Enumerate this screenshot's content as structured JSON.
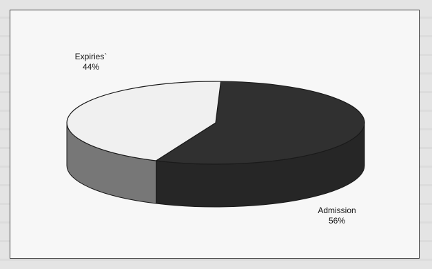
{
  "chart_data": {
    "type": "pie",
    "style": "3d",
    "slices": [
      {
        "label": "Admission",
        "value": 56,
        "value_label": "56%",
        "color": "#303030",
        "side_color": "#262626"
      },
      {
        "label": "Expiries`",
        "value": 44,
        "value_label": "44%",
        "color": "#f0f0f0",
        "side_color": "#777777"
      }
    ],
    "legend": "none"
  }
}
